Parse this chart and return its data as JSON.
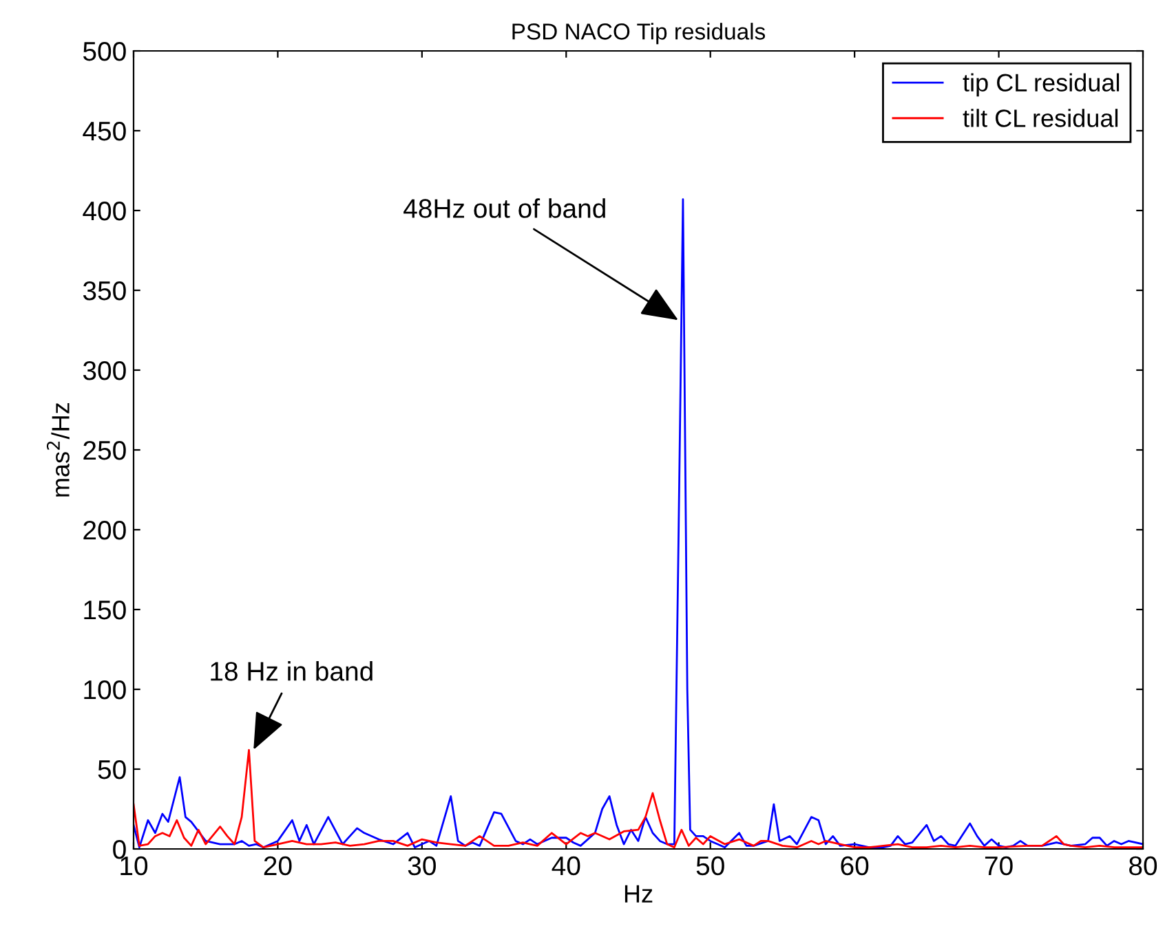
{
  "chart_data": {
    "type": "line",
    "title": "PSD NACO Tip residuals",
    "xlabel": "Hz",
    "ylabel": "mas$^{2}$/Hz",
    "xlim": [
      10,
      80
    ],
    "ylim": [
      0,
      500
    ],
    "xticks": [
      10,
      20,
      30,
      40,
      50,
      60,
      70,
      80
    ],
    "yticks": [
      0,
      50,
      100,
      150,
      200,
      250,
      300,
      350,
      400,
      450,
      500
    ],
    "grid": false,
    "legend": "top right",
    "marker": "none",
    "line_style": "solid",
    "annotations": [
      {
        "text": "48Hz out of band",
        "x": 48,
        "y": 330
      },
      {
        "text": "18 Hz in band",
        "x": 18.2,
        "y": 60
      }
    ],
    "series": [
      {
        "name": "tip CL residual",
        "color": "#0000ff",
        "x": [
          10,
          10.4,
          11,
          11.5,
          12,
          12.4,
          13.2,
          13.6,
          14,
          15,
          16,
          17,
          17.5,
          18,
          18.5,
          19,
          20,
          21,
          21.5,
          22,
          22.5,
          23.5,
          24.5,
          25,
          25.5,
          26,
          27,
          28,
          29,
          29.5,
          30,
          30.5,
          31,
          32,
          32.5,
          33,
          33.5,
          34,
          35,
          35.5,
          36.5,
          37,
          37.5,
          38,
          39,
          40,
          40.5,
          41,
          42,
          42.5,
          43,
          43.5,
          44,
          44.5,
          45,
          45.5,
          46,
          46.5,
          47,
          47.5,
          47.8,
          48.1,
          48.4,
          48.6,
          49,
          49.5,
          50,
          50.5,
          51,
          52,
          52.5,
          53,
          54,
          54.4,
          54.8,
          55.5,
          56,
          57,
          57.5,
          58,
          58.5,
          59,
          60,
          61,
          62,
          62.5,
          63,
          63.5,
          64,
          65,
          65.5,
          66,
          66.5,
          67,
          68,
          68.5,
          69,
          69.5,
          70,
          70.5,
          71,
          71.5,
          72,
          73,
          74,
          75,
          76,
          76.5,
          77,
          77.5,
          78,
          78.5,
          79,
          80
        ],
        "values": [
          15,
          1,
          18,
          10,
          22,
          17,
          45,
          20,
          17,
          5,
          3,
          3,
          5,
          2,
          3,
          1,
          5,
          18,
          5,
          15,
          3,
          20,
          3,
          8,
          13,
          10,
          6,
          3,
          10,
          1,
          3,
          5,
          2,
          33,
          5,
          2,
          4,
          2,
          23,
          22,
          5,
          3,
          6,
          3,
          7,
          7,
          4,
          2,
          10,
          25,
          33,
          15,
          3,
          12,
          5,
          20,
          10,
          5,
          3,
          3,
          200,
          407,
          100,
          12,
          8,
          8,
          5,
          3,
          1,
          10,
          2,
          2,
          5,
          28,
          5,
          8,
          3,
          20,
          18,
          3,
          8,
          2,
          3,
          1,
          1,
          2,
          8,
          3,
          4,
          15,
          5,
          8,
          3,
          2,
          16,
          8,
          2,
          6,
          2,
          1,
          2,
          5,
          2,
          2,
          4,
          2,
          3,
          7,
          7,
          2,
          5,
          3,
          5,
          3
        ]
      },
      {
        "name": "tilt CL residual",
        "color": "#ff0000",
        "x": [
          10,
          10.4,
          11,
          11.5,
          12,
          12.5,
          13,
          13.5,
          14,
          14.5,
          15,
          16,
          16.5,
          17,
          17.5,
          18,
          18.4,
          19,
          20,
          21,
          22,
          23,
          24,
          25,
          26,
          27,
          28,
          29,
          30,
          31,
          32,
          33,
          34,
          35,
          36,
          37,
          37.5,
          38,
          39,
          40,
          41,
          41.5,
          42,
          43,
          44,
          45,
          45.5,
          46,
          46.5,
          47,
          47.5,
          48,
          48.5,
          49,
          49.5,
          50,
          51,
          52,
          53,
          53.5,
          54,
          55,
          56,
          57,
          57.5,
          58,
          59,
          60,
          61,
          62,
          63,
          64,
          65,
          66,
          67,
          68,
          69,
          70,
          72,
          73,
          74,
          74.5,
          75,
          76,
          77,
          78,
          79,
          80
        ],
        "values": [
          28,
          2,
          3,
          8,
          10,
          8,
          18,
          7,
          2,
          12,
          3,
          14,
          8,
          3,
          20,
          62,
          5,
          1,
          3,
          5,
          3,
          3,
          4,
          2,
          3,
          5,
          5,
          2,
          6,
          4,
          3,
          2,
          8,
          2,
          2,
          4,
          3,
          2,
          10,
          3,
          10,
          8,
          10,
          6,
          11,
          12,
          20,
          35,
          18,
          3,
          1,
          12,
          2,
          7,
          3,
          8,
          3,
          6,
          2,
          5,
          5,
          2,
          1,
          5,
          3,
          5,
          3,
          1,
          1,
          2,
          3,
          1,
          1,
          2,
          1,
          2,
          1,
          1,
          2,
          2,
          8,
          3,
          2,
          1,
          2,
          1,
          1,
          1
        ]
      }
    ]
  }
}
